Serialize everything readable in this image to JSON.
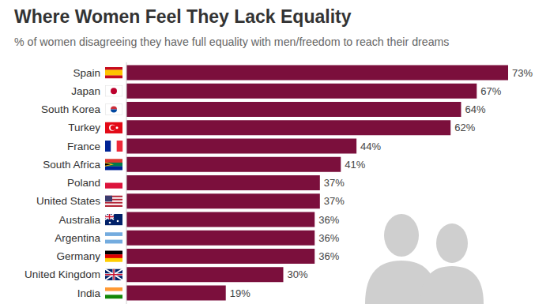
{
  "chart_data": {
    "type": "bar",
    "orientation": "horizontal",
    "title": "Where Women Feel They Lack Equality",
    "subtitle": "% of women disagreeing they have full equality with men/freedom to reach their dreams",
    "categories": [
      "Spain",
      "Japan",
      "South Korea",
      "Turkey",
      "France",
      "South Africa",
      "Poland",
      "United States",
      "Australia",
      "Argentina",
      "Germany",
      "United Kingdom",
      "India"
    ],
    "values": [
      73,
      67,
      64,
      62,
      44,
      41,
      37,
      37,
      36,
      36,
      36,
      30,
      19
    ],
    "value_labels": [
      "73%",
      "67%",
      "64%",
      "62%",
      "44%",
      "41%",
      "37%",
      "37%",
      "36%",
      "36%",
      "36%",
      "30%",
      "19%"
    ],
    "color": "#7b0f3c",
    "xlim": [
      0,
      73
    ],
    "data_labels": true,
    "tick_labels": "y",
    "grid": false
  }
}
